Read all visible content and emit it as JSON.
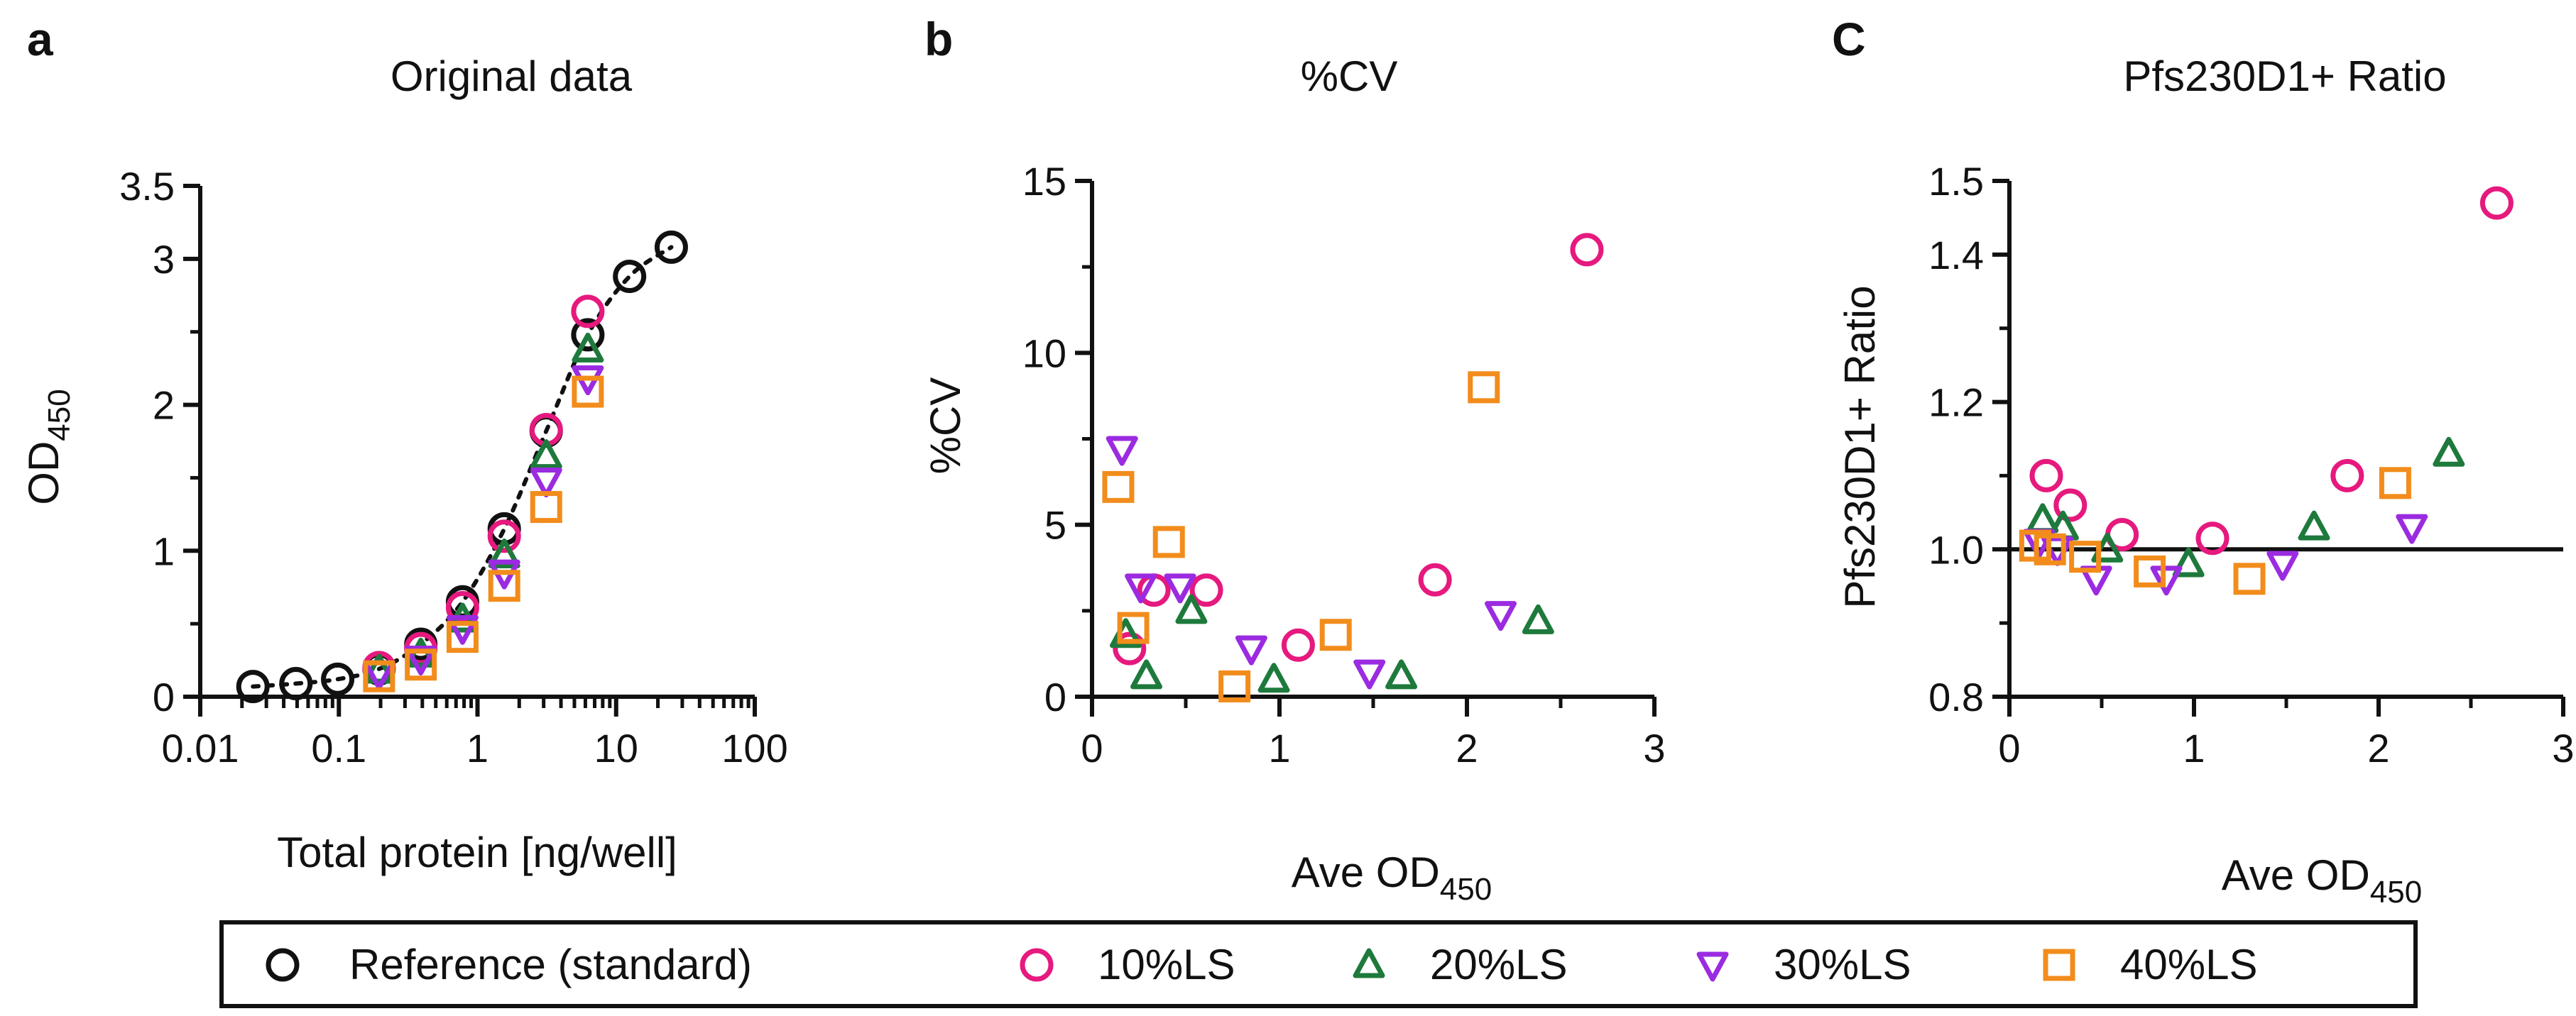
{
  "colors": {
    "reference": "#111111",
    "ls10": "#e6197e",
    "ls20": "#1e7a3c",
    "ls30": "#9b2be0",
    "ls40": "#f28c1c",
    "axis": "#111111"
  },
  "legend": {
    "items": [
      {
        "label": "Reference (standard)",
        "series": "reference",
        "marker": "circle"
      },
      {
        "label": "10%LS",
        "series": "ls10",
        "marker": "circle"
      },
      {
        "label": "20%LS",
        "series": "ls20",
        "marker": "triangle-up"
      },
      {
        "label": "30%LS",
        "series": "ls30",
        "marker": "triangle-down"
      },
      {
        "label": "40%LS",
        "series": "ls40",
        "marker": "square"
      }
    ]
  },
  "chart_data": [
    {
      "id": "a",
      "panel_label": "a",
      "type": "scatter",
      "title": "Original data",
      "xlabel": "Total protein [ng/well]",
      "ylabel": "OD",
      "ylabel_sub": "450",
      "xscale": "log",
      "xlim": [
        0.01,
        100
      ],
      "ylim": [
        0,
        3.5
      ],
      "xticks": [
        0.01,
        0.1,
        1,
        10,
        100
      ],
      "xtick_labels": [
        "0.01",
        "0.1",
        "1",
        "10",
        "100"
      ],
      "yticks": [
        0,
        1,
        2,
        3,
        3.5
      ],
      "ytick_labels": [
        "0",
        "1",
        "2",
        "3",
        "3.5"
      ],
      "fit_line": "dotted",
      "series": [
        {
          "name": "Reference (standard)",
          "key": "reference",
          "marker": "circle",
          "x": [
            0.024,
            0.049,
            0.098,
            0.195,
            0.39,
            0.78,
            1.56,
            3.13,
            6.25,
            12.5,
            25
          ],
          "y": [
            0.07,
            0.09,
            0.12,
            0.19,
            0.36,
            0.65,
            1.15,
            1.82,
            2.48,
            2.88,
            3.08
          ]
        },
        {
          "name": "10%LS",
          "key": "ls10",
          "marker": "circle",
          "x": [
            0.195,
            0.39,
            0.78,
            1.56,
            3.13,
            6.25
          ],
          "y": [
            0.2,
            0.33,
            0.61,
            1.1,
            1.83,
            2.64
          ]
        },
        {
          "name": "20%LS",
          "key": "ls20",
          "marker": "triangle-up",
          "x": [
            0.195,
            0.39,
            0.78,
            1.56,
            3.13,
            6.25
          ],
          "y": [
            0.18,
            0.29,
            0.53,
            0.97,
            1.65,
            2.38
          ]
        },
        {
          "name": "30%LS",
          "key": "ls30",
          "marker": "triangle-down",
          "x": [
            0.195,
            0.39,
            0.78,
            1.56,
            3.13,
            6.25
          ],
          "y": [
            0.16,
            0.26,
            0.47,
            0.85,
            1.48,
            2.18
          ]
        },
        {
          "name": "40%LS",
          "key": "ls40",
          "marker": "square",
          "x": [
            0.195,
            0.39,
            0.78,
            1.56,
            3.13,
            6.25
          ],
          "y": [
            0.14,
            0.22,
            0.41,
            0.76,
            1.3,
            2.09
          ]
        }
      ]
    },
    {
      "id": "b",
      "panel_label": "b",
      "type": "scatter",
      "title": "%CV",
      "xlabel": "Ave OD",
      "xlabel_sub": "450",
      "ylabel": "%CV",
      "xlim": [
        0,
        3
      ],
      "ylim": [
        0,
        15
      ],
      "xticks": [
        0,
        1,
        2,
        3
      ],
      "xtick_labels": [
        "0",
        "1",
        "2",
        "3"
      ],
      "yticks": [
        0,
        5,
        10,
        15
      ],
      "ytick_labels": [
        "0",
        "5",
        "10",
        "15"
      ],
      "series": [
        {
          "name": "10%LS",
          "key": "ls10",
          "marker": "circle",
          "x": [
            0.2,
            0.33,
            0.61,
            1.1,
            1.83,
            2.64
          ],
          "y": [
            1.4,
            3.1,
            3.1,
            1.5,
            3.4,
            13.0
          ]
        },
        {
          "name": "20%LS",
          "key": "ls20",
          "marker": "triangle-up",
          "x": [
            0.18,
            0.29,
            0.53,
            0.97,
            1.65,
            2.38
          ],
          "y": [
            1.8,
            0.6,
            2.5,
            0.5,
            0.6,
            2.2
          ]
        },
        {
          "name": "30%LS",
          "key": "ls30",
          "marker": "triangle-down",
          "x": [
            0.16,
            0.26,
            0.47,
            0.85,
            1.48,
            2.18
          ],
          "y": [
            7.2,
            3.2,
            3.2,
            1.4,
            0.7,
            2.4
          ]
        },
        {
          "name": "40%LS",
          "key": "ls40",
          "marker": "square",
          "x": [
            0.14,
            0.22,
            0.41,
            0.76,
            1.3,
            2.09
          ],
          "y": [
            6.1,
            2.0,
            4.5,
            0.3,
            1.8,
            9.0
          ]
        }
      ]
    },
    {
      "id": "c",
      "panel_label": "C",
      "type": "scatter",
      "title": "Pfs230D1+ Ratio",
      "xlabel": "Ave OD",
      "xlabel_sub": "450",
      "ylabel": "Pfs230D1+ Ratio",
      "xlim": [
        0,
        3
      ],
      "ylim": [
        0.8,
        1.5
      ],
      "xticks": [
        0,
        1,
        2,
        3
      ],
      "xtick_labels": [
        "0",
        "1",
        "2",
        "3"
      ],
      "yticks": [
        0.8,
        1.0,
        1.2,
        1.4,
        1.5
      ],
      "ytick_labels": [
        "0.8",
        "1.0",
        "1.2",
        "1.4",
        "1.5"
      ],
      "hline": 1.0,
      "series": [
        {
          "name": "10%LS",
          "key": "ls10",
          "marker": "circle",
          "x": [
            0.2,
            0.33,
            0.61,
            1.1,
            1.83,
            2.64
          ],
          "y": [
            1.1,
            1.06,
            1.02,
            1.015,
            1.1,
            1.47
          ]
        },
        {
          "name": "20%LS",
          "key": "ls20",
          "marker": "triangle-up",
          "x": [
            0.18,
            0.29,
            0.53,
            0.97,
            1.65,
            2.38
          ],
          "y": [
            1.04,
            1.03,
            1.0,
            0.98,
            1.03,
            1.13
          ]
        },
        {
          "name": "30%LS",
          "key": "ls30",
          "marker": "triangle-down",
          "x": [
            0.16,
            0.26,
            0.47,
            0.85,
            1.48,
            2.18
          ],
          "y": [
            1.01,
            1.0,
            0.96,
            0.96,
            0.98,
            1.03
          ]
        },
        {
          "name": "40%LS",
          "key": "ls40",
          "marker": "square",
          "x": [
            0.14,
            0.22,
            0.41,
            0.76,
            1.3,
            2.09
          ],
          "y": [
            1.005,
            1.0,
            0.99,
            0.97,
            0.96,
            1.09
          ]
        }
      ]
    }
  ]
}
